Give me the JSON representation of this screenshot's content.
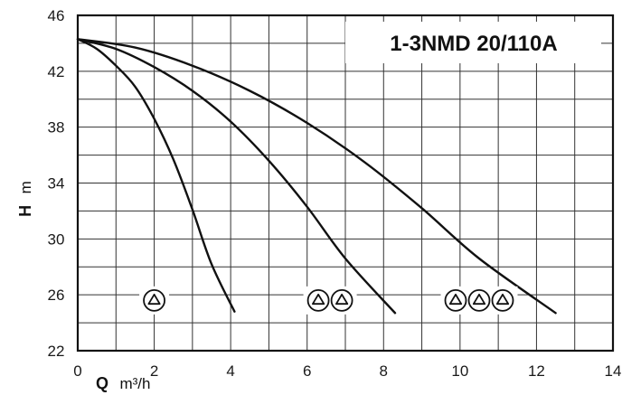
{
  "chart_data": {
    "type": "line",
    "title": "1-3NMD 20/110A",
    "xlabel": {
      "symbol": "Q",
      "unit": "m³/h"
    },
    "ylabel": {
      "symbol": "H",
      "unit": "m"
    },
    "xlim": [
      0,
      14
    ],
    "ylim": [
      22,
      46
    ],
    "x_ticks": [
      "0",
      "2",
      "4",
      "6",
      "8",
      "10",
      "12",
      "14"
    ],
    "y_ticks": [
      "22",
      "26",
      "30",
      "34",
      "38",
      "42",
      "46"
    ],
    "grid": true,
    "series": [
      {
        "pumps": 1,
        "x": [
          0,
          0.5,
          1,
          1.5,
          2,
          2.5,
          3,
          3.5,
          4.1
        ],
        "y": [
          44.3,
          43.6,
          42.4,
          40.9,
          38.6,
          35.7,
          32.1,
          28.2,
          24.8
        ]
      },
      {
        "pumps": 2,
        "x": [
          0,
          1,
          2,
          3,
          4,
          5,
          6,
          7,
          8.3
        ],
        "y": [
          44.3,
          43.6,
          42.3,
          40.6,
          38.4,
          35.6,
          32.3,
          28.6,
          24.7
        ]
      },
      {
        "pumps": 3,
        "x": [
          0,
          1.5,
          3,
          4.5,
          6,
          7.5,
          9,
          10.5,
          12.5
        ],
        "y": [
          44.3,
          43.7,
          42.4,
          40.6,
          38.3,
          35.5,
          32.2,
          28.6,
          24.7
        ]
      }
    ],
    "pump_symbols": [
      {
        "count": 1,
        "x": 2,
        "y": 25.6
      },
      {
        "count": 2,
        "x": 6.6,
        "y": 25.6
      },
      {
        "count": 3,
        "x": 10.5,
        "y": 25.6
      }
    ]
  }
}
